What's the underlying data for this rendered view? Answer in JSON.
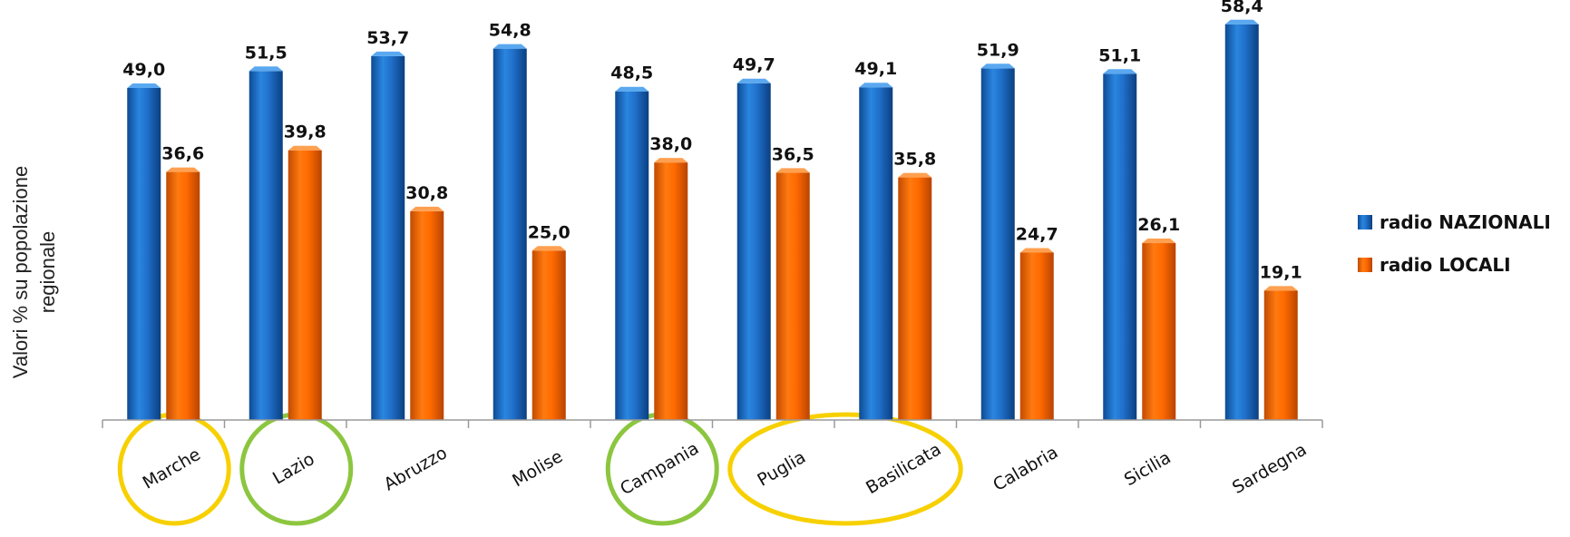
{
  "chart_data": {
    "type": "bar",
    "ylabel": [
      "Valori % su popolazione",
      "regionale"
    ],
    "ylim": [
      0,
      60
    ],
    "grid": false,
    "legend_position": "right",
    "categories": [
      "Marche",
      "Lazio",
      "Abruzzo",
      "Molise",
      "Campania",
      "Puglia",
      "Basilicata",
      "Calabria",
      "Sicilia",
      "Sardegna"
    ],
    "series": [
      {
        "name": "radio NAZIONALI",
        "color": "#1f6fc9",
        "values": [
          49.0,
          51.5,
          53.7,
          54.8,
          48.5,
          49.7,
          49.1,
          51.9,
          51.1,
          58.4
        ],
        "labels": [
          "49,0",
          "51,5",
          "53,7",
          "54,8",
          "48,5",
          "49,7",
          "49,1",
          "51,9",
          "51,1",
          "58,4"
        ]
      },
      {
        "name": "radio LOCALI",
        "color": "#ff6a00",
        "values": [
          36.6,
          39.8,
          30.8,
          25.0,
          38.0,
          36.5,
          35.8,
          24.7,
          26.1,
          19.1
        ],
        "labels": [
          "36,6",
          "39,8",
          "30,8",
          "25,0",
          "38,0",
          "36,5",
          "35,8",
          "24,7",
          "26,1",
          "19,1"
        ]
      }
    ],
    "highlights": [
      {
        "categories": [
          "Marche"
        ],
        "color": "#f7d000"
      },
      {
        "categories": [
          "Lazio"
        ],
        "color": "#8cc63f"
      },
      {
        "categories": [
          "Campania"
        ],
        "color": "#8cc63f"
      },
      {
        "categories": [
          "Puglia",
          "Basilicata"
        ],
        "color": "#f7d000"
      }
    ]
  }
}
